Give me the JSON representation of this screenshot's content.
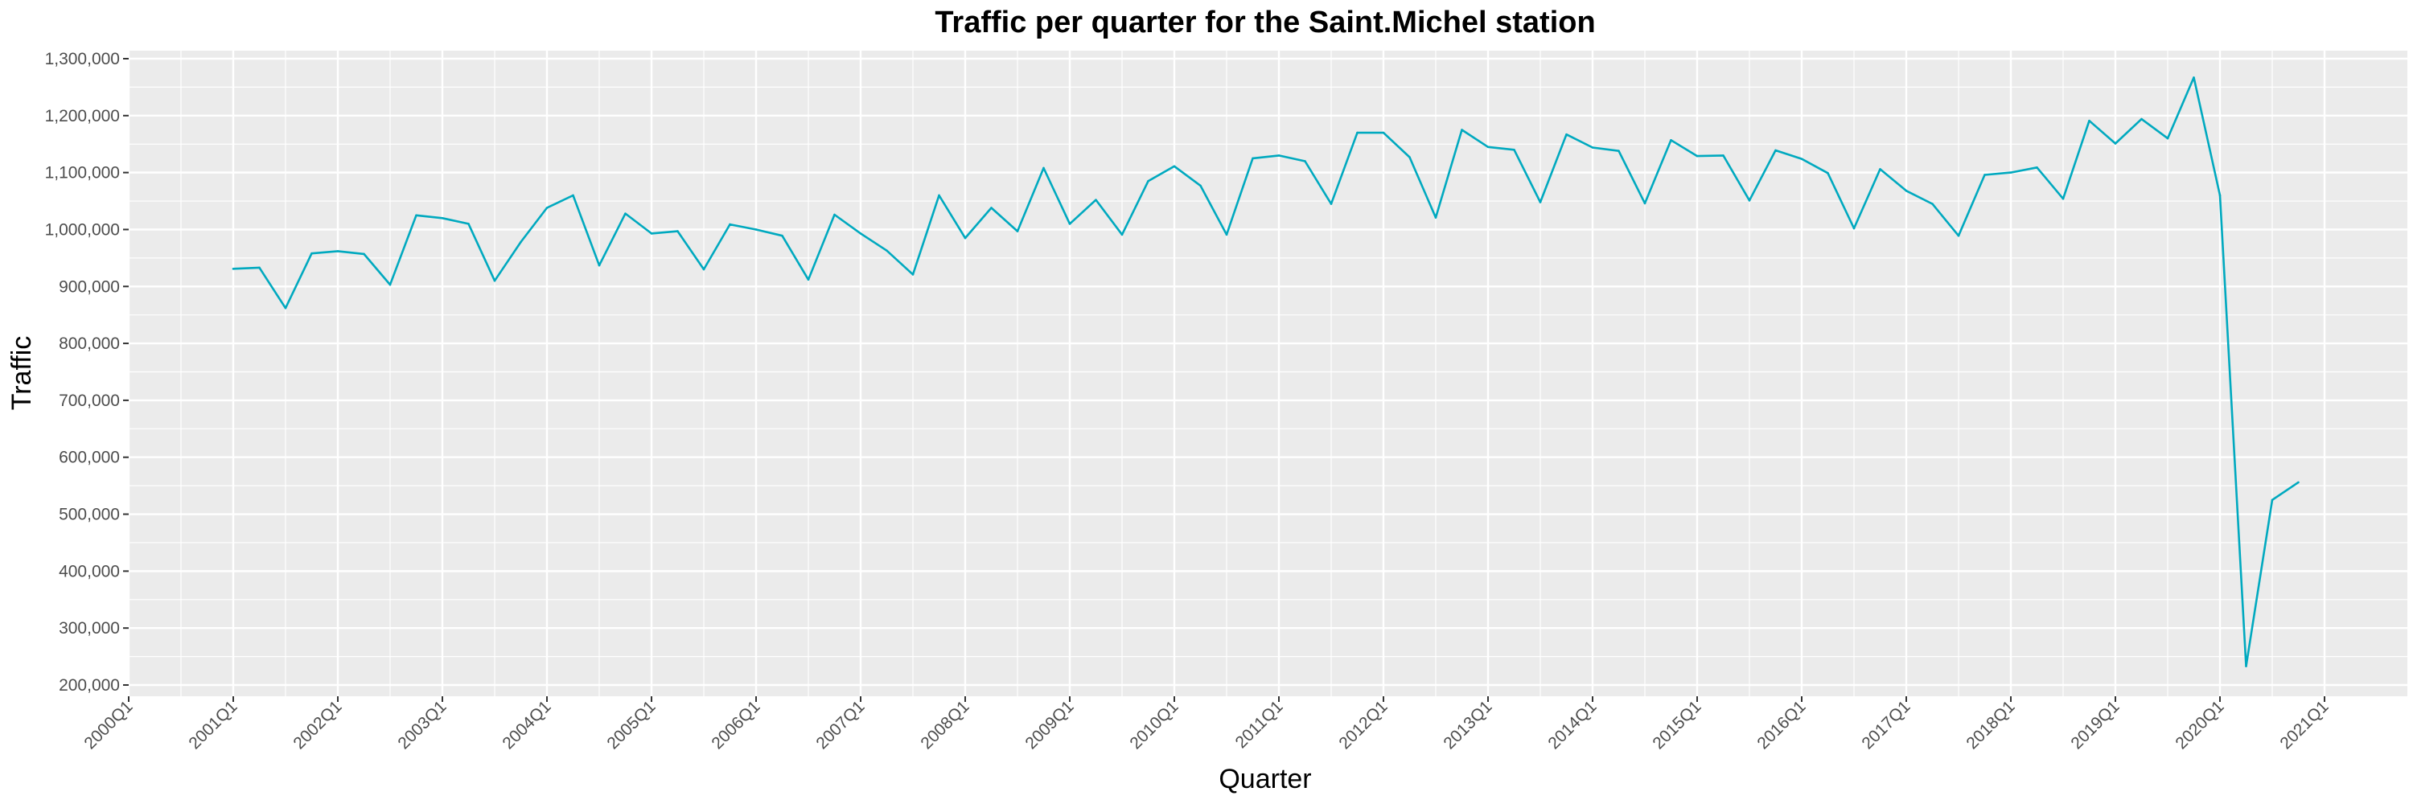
{
  "chart_data": {
    "type": "line",
    "title": "Traffic per quarter for the Saint.Michel station",
    "xlabel": "Quarter",
    "ylabel": "Traffic",
    "grid": true,
    "ylim": [
      180000,
      1330000
    ],
    "yticks": [
      200000,
      300000,
      400000,
      500000,
      600000,
      700000,
      800000,
      900000,
      1000000,
      1100000,
      1200000,
      1300000
    ],
    "ytick_labels": [
      "200,000",
      "300,000",
      "400,000",
      "500,000",
      "600,000",
      "700,000",
      "800,000",
      "900,000",
      "1,000,000",
      "1,100,000",
      "1,200,000",
      "1,300,000"
    ],
    "xtick_labels": [
      "2000Q1",
      "2001Q1",
      "2002Q1",
      "2003Q1",
      "2004Q1",
      "2005Q1",
      "2006Q1",
      "2007Q1",
      "2008Q1",
      "2009Q1",
      "2010Q1",
      "2011Q1",
      "2012Q1",
      "2013Q1",
      "2014Q1",
      "2015Q1",
      "2016Q1",
      "2017Q1",
      "2018Q1",
      "2019Q1",
      "2020Q1",
      "2021Q1"
    ],
    "line_color": "#00a9bf",
    "series": [
      {
        "x": [
          "2001Q1",
          "2001Q2",
          "2001Q3",
          "2001Q4",
          "2002Q1",
          "2002Q2",
          "2002Q3",
          "2002Q4",
          "2003Q1",
          "2003Q2",
          "2003Q3",
          "2003Q4",
          "2004Q1",
          "2004Q2",
          "2004Q3",
          "2004Q4",
          "2005Q1",
          "2005Q2",
          "2005Q3",
          "2005Q4",
          "2006Q1",
          "2006Q2",
          "2006Q3",
          "2006Q4",
          "2007Q1",
          "2007Q2",
          "2007Q3",
          "2007Q4",
          "2008Q1",
          "2008Q2",
          "2008Q3",
          "2008Q4",
          "2009Q1",
          "2009Q2",
          "2009Q3",
          "2009Q4",
          "2010Q1",
          "2010Q2",
          "2010Q3",
          "2010Q4",
          "2011Q1",
          "2011Q2",
          "2011Q3",
          "2011Q4",
          "2012Q1",
          "2012Q2",
          "2012Q3",
          "2012Q4",
          "2013Q1",
          "2013Q2",
          "2013Q3",
          "2013Q4",
          "2014Q1",
          "2014Q2",
          "2014Q3",
          "2014Q4",
          "2015Q1",
          "2015Q2",
          "2015Q3",
          "2015Q4",
          "2016Q1",
          "2016Q2",
          "2016Q3",
          "2016Q4",
          "2017Q1",
          "2017Q2",
          "2017Q3",
          "2017Q4",
          "2018Q1",
          "2018Q2",
          "2018Q3",
          "2018Q4",
          "2019Q1",
          "2019Q2",
          "2019Q3",
          "2019Q4",
          "2020Q1",
          "2020Q2",
          "2020Q3",
          "2020Q4"
        ],
        "values": [
          931000,
          933000,
          862000,
          958000,
          962000,
          957000,
          903000,
          1025000,
          1020000,
          1010000,
          910000,
          978000,
          1038000,
          1060000,
          937000,
          1028000,
          993000,
          997000,
          930000,
          1009000,
          1000000,
          989000,
          912000,
          1026000,
          993000,
          963000,
          921000,
          1060000,
          985000,
          1038000,
          997000,
          1108000,
          1010000,
          1052000,
          991000,
          1085000,
          1111000,
          1077000,
          991000,
          1125000,
          1130000,
          1120000,
          1045000,
          1170000,
          1170000,
          1127000,
          1021000,
          1175000,
          1145000,
          1140000,
          1048000,
          1167000,
          1144000,
          1138000,
          1046000,
          1157000,
          1129000,
          1130000,
          1051000,
          1139000,
          1124000,
          1099000,
          1002000,
          1106000,
          1068000,
          1045000,
          989000,
          1096000,
          1100000,
          1109000,
          1054000,
          1191000,
          1151000,
          1194000,
          1160000,
          1267000,
          1060000,
          233000,
          525000,
          556000
        ]
      }
    ]
  }
}
